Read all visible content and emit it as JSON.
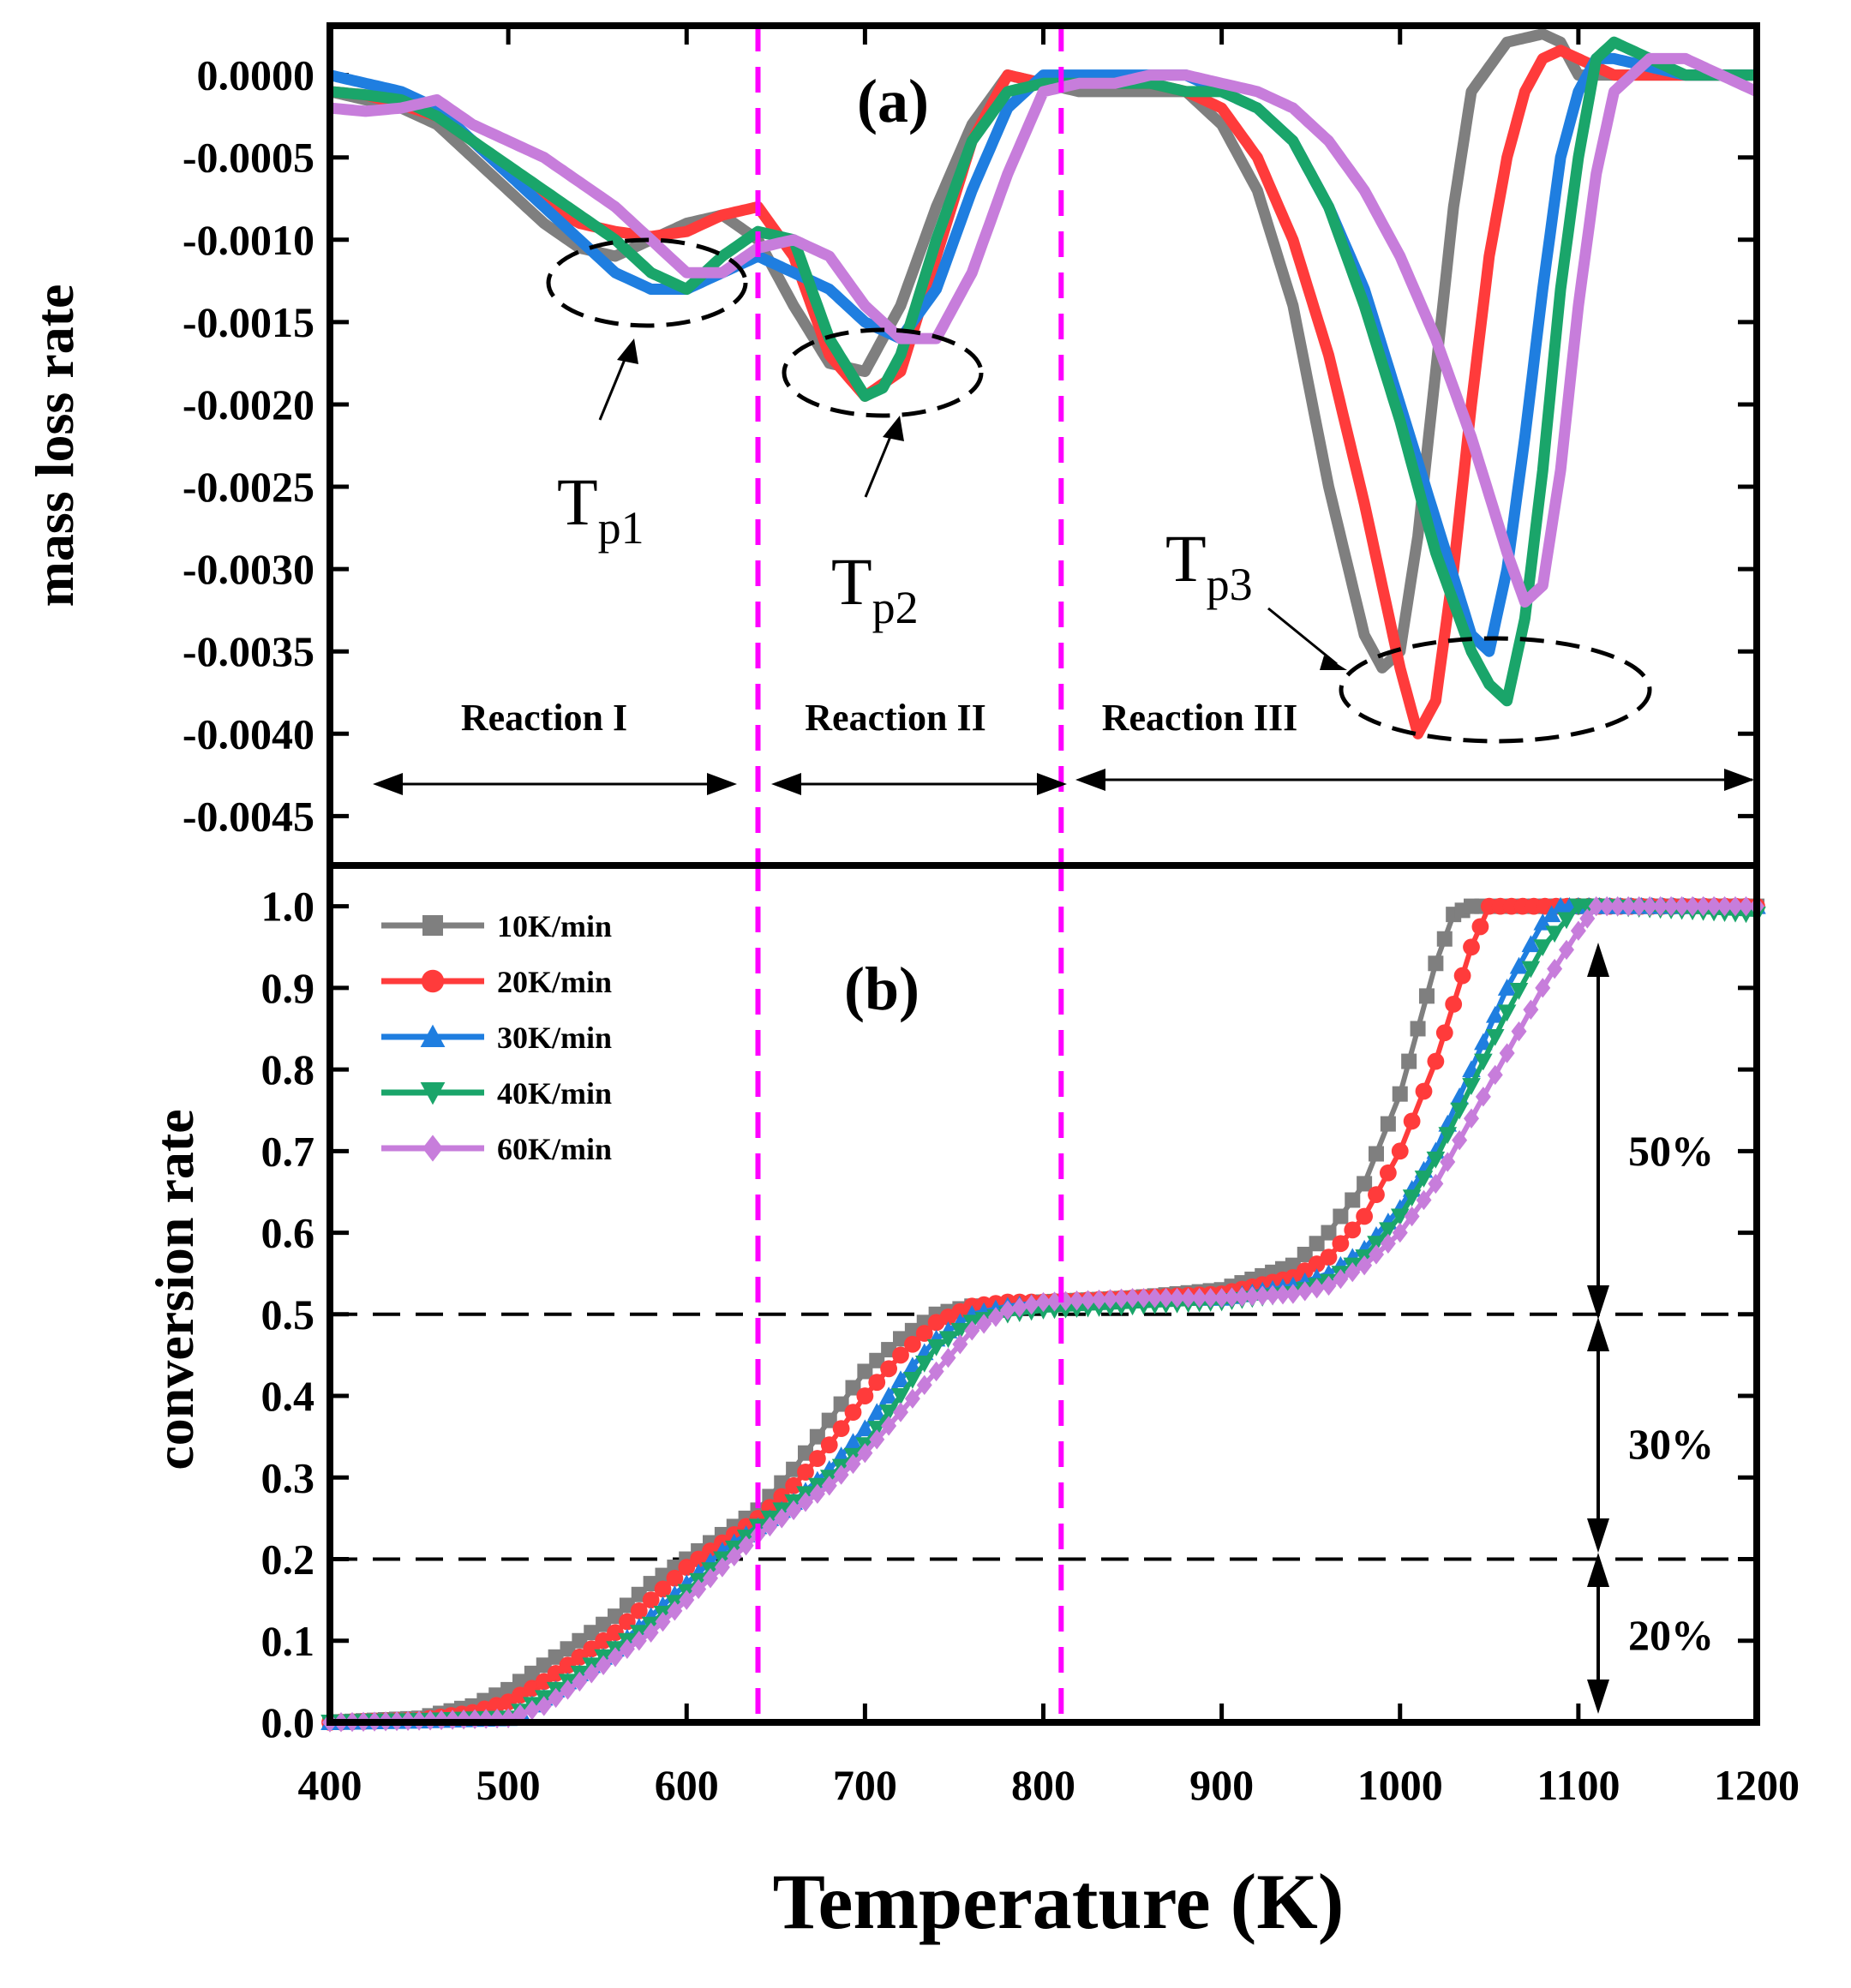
{
  "chart_data": [
    {
      "panel": "(a)",
      "type": "line",
      "ylabel": "mass loss rate",
      "xlim": [
        400,
        1200
      ],
      "ylim": [
        -0.0048,
        0.0003
      ],
      "yticks": [
        "0.0000",
        "-0.0005",
        "-0.0010",
        "-0.0015",
        "-0.0020",
        "-0.0025",
        "-0.0030",
        "-0.0035",
        "-0.0040",
        "-0.0045"
      ],
      "ytick_values": [
        0,
        -0.0005,
        -0.001,
        -0.0015,
        -0.002,
        -0.0025,
        -0.003,
        -0.0035,
        -0.004,
        -0.0045
      ],
      "series": [
        {
          "name": "10K/min",
          "color": "#7f7f7f",
          "x": [
            400,
            420,
            440,
            460,
            480,
            500,
            520,
            540,
            560,
            580,
            600,
            620,
            640,
            660,
            680,
            700,
            720,
            740,
            760,
            780,
            800,
            820,
            840,
            860,
            880,
            900,
            920,
            940,
            960,
            980,
            990,
            1000,
            1010,
            1020,
            1030,
            1040,
            1060,
            1080,
            1090,
            1100,
            1120,
            1140,
            1160,
            1200
          ],
          "y": [
            -0.0001,
            -0.00015,
            -0.0002,
            -0.0003,
            -0.0005,
            -0.0007,
            -0.0009,
            -0.00105,
            -0.0011,
            -0.001,
            -0.0009,
            -0.00085,
            -0.001,
            -0.0014,
            -0.00175,
            -0.0018,
            -0.0014,
            -0.0008,
            -0.0003,
            0,
            -5e-05,
            -0.0001,
            -0.0001,
            -0.0001,
            -0.0001,
            -0.0003,
            -0.0007,
            -0.0014,
            -0.0025,
            -0.0034,
            -0.0036,
            -0.0035,
            -0.0028,
            -0.0018,
            -0.0008,
            -0.0001,
            0.0002,
            0.00025,
            0.0002,
            0,
            0,
            0,
            0,
            0
          ]
        },
        {
          "name": "20K/min",
          "color": "#ff3b3b",
          "x": [
            400,
            420,
            440,
            460,
            480,
            500,
            520,
            540,
            560,
            580,
            600,
            620,
            640,
            660,
            680,
            700,
            720,
            740,
            760,
            780,
            800,
            820,
            840,
            860,
            880,
            900,
            920,
            940,
            960,
            980,
            1000,
            1010,
            1020,
            1030,
            1040,
            1050,
            1060,
            1070,
            1080,
            1090,
            1100,
            1120,
            1160,
            1200
          ],
          "y": [
            -0.0001,
            -0.00012,
            -0.00018,
            -0.00025,
            -0.0004,
            -0.0006,
            -0.00078,
            -0.0009,
            -0.00095,
            -0.00098,
            -0.00095,
            -0.00085,
            -0.0008,
            -0.0011,
            -0.0017,
            -0.00195,
            -0.0018,
            -0.0011,
            -0.0004,
            0,
            -5e-05,
            -5e-05,
            -5e-05,
            -5e-05,
            -0.0001,
            -0.0002,
            -0.0005,
            -0.001,
            -0.0017,
            -0.0026,
            -0.0036,
            -0.004,
            -0.0038,
            -0.003,
            -0.002,
            -0.0011,
            -0.0005,
            -0.0001,
            0.0001,
            0.00015,
            0.0001,
            0,
            0,
            0
          ]
        },
        {
          "name": "30K/min",
          "color": "#1f7ee0",
          "x": [
            400,
            420,
            440,
            460,
            480,
            500,
            520,
            540,
            560,
            580,
            600,
            620,
            640,
            660,
            680,
            700,
            720,
            740,
            760,
            780,
            800,
            820,
            840,
            860,
            880,
            900,
            920,
            940,
            960,
            980,
            1000,
            1020,
            1040,
            1050,
            1060,
            1070,
            1080,
            1090,
            1100,
            1110,
            1120,
            1160,
            1200
          ],
          "y": [
            0,
            -5e-05,
            -0.0001,
            -0.0002,
            -0.0004,
            -0.0006,
            -0.0008,
            -0.001,
            -0.0012,
            -0.0013,
            -0.0013,
            -0.0012,
            -0.0011,
            -0.0012,
            -0.0013,
            -0.0015,
            -0.0016,
            -0.0013,
            -0.0007,
            -0.0002,
            0,
            0,
            0,
            0,
            0,
            -0.0001,
            -0.0002,
            -0.0004,
            -0.0008,
            -0.0013,
            -0.002,
            -0.0027,
            -0.0034,
            -0.0035,
            -0.003,
            -0.0022,
            -0.0013,
            -0.0005,
            -0.0001,
            0.0001,
            0.0001,
            0,
            0
          ]
        },
        {
          "name": "40K/min",
          "color": "#1aa56a",
          "x": [
            400,
            420,
            440,
            460,
            480,
            500,
            520,
            540,
            560,
            580,
            600,
            620,
            640,
            660,
            680,
            700,
            710,
            720,
            740,
            760,
            780,
            800,
            820,
            840,
            860,
            880,
            900,
            920,
            940,
            960,
            980,
            1000,
            1020,
            1040,
            1050,
            1060,
            1070,
            1080,
            1090,
            1100,
            1110,
            1120,
            1160,
            1200
          ],
          "y": [
            -0.0001,
            -0.00012,
            -0.00015,
            -0.00025,
            -0.0004,
            -0.00055,
            -0.0007,
            -0.00085,
            -0.001,
            -0.0012,
            -0.0013,
            -0.0011,
            -0.00095,
            -0.001,
            -0.0016,
            -0.00195,
            -0.0019,
            -0.0017,
            -0.001,
            -0.0004,
            -0.0001,
            -5e-05,
            -5e-05,
            -5e-05,
            -5e-05,
            -0.0001,
            -0.0001,
            -0.0002,
            -0.0004,
            -0.0008,
            -0.0014,
            -0.0021,
            -0.0029,
            -0.0035,
            -0.0037,
            -0.0038,
            -0.0033,
            -0.0024,
            -0.0013,
            -0.0005,
            0.0001,
            0.0002,
            0,
            0
          ]
        },
        {
          "name": "60K/min",
          "color": "#c77ddb",
          "x": [
            400,
            420,
            440,
            460,
            480,
            500,
            520,
            540,
            560,
            580,
            600,
            620,
            640,
            660,
            680,
            700,
            720,
            740,
            760,
            780,
            800,
            820,
            840,
            860,
            880,
            900,
            920,
            940,
            960,
            980,
            1000,
            1020,
            1040,
            1060,
            1070,
            1080,
            1090,
            1100,
            1110,
            1120,
            1140,
            1160,
            1200
          ],
          "y": [
            -0.0002,
            -0.00022,
            -0.0002,
            -0.00015,
            -0.0003,
            -0.0004,
            -0.0005,
            -0.00065,
            -0.0008,
            -0.001,
            -0.0012,
            -0.0012,
            -0.00105,
            -0.001,
            -0.0011,
            -0.0014,
            -0.0016,
            -0.0016,
            -0.0012,
            -0.0006,
            -0.0001,
            -5e-05,
            -5e-05,
            0,
            0,
            -5e-05,
            -0.0001,
            -0.0002,
            -0.0004,
            -0.0007,
            -0.0011,
            -0.0016,
            -0.0022,
            -0.0029,
            -0.0032,
            -0.0031,
            -0.0024,
            -0.0014,
            -0.0006,
            -0.0001,
            0.0001,
            0.0001,
            -0.0001
          ]
        }
      ],
      "vlines": [
        640,
        810
      ],
      "regions": [
        "Reaction I",
        "Reaction II",
        "Reaction III"
      ],
      "peak_labels": [
        {
          "main": "T",
          "sub": "p1"
        },
        {
          "main": "T",
          "sub": "p2"
        },
        {
          "main": "T",
          "sub": "p3"
        }
      ]
    },
    {
      "panel": "(b)",
      "type": "line",
      "xlabel": "Temperature (K)",
      "ylabel": "conversion rate",
      "xlim": [
        400,
        1200
      ],
      "ylim": [
        0,
        1.05
      ],
      "xticks": [
        "400",
        "500",
        "600",
        "700",
        "800",
        "900",
        "1000",
        "1100",
        "1200"
      ],
      "xtick_values": [
        400,
        500,
        600,
        700,
        800,
        900,
        1000,
        1100,
        1200
      ],
      "yticks": [
        "0.0",
        "0.1",
        "0.2",
        "0.3",
        "0.4",
        "0.5",
        "0.6",
        "0.7",
        "0.8",
        "0.9",
        "1.0"
      ],
      "ytick_values": [
        0,
        0.1,
        0.2,
        0.3,
        0.4,
        0.5,
        0.6,
        0.7,
        0.8,
        0.9,
        1.0
      ],
      "series": [
        {
          "name": "10K/min",
          "color": "#7f7f7f",
          "marker": "square",
          "x": [
            400,
            450,
            480,
            500,
            520,
            540,
            560,
            580,
            600,
            620,
            640,
            660,
            680,
            700,
            720,
            740,
            760,
            780,
            800,
            850,
            900,
            940,
            960,
            980,
            1000,
            1010,
            1020,
            1030,
            1040,
            1100,
            1200
          ],
          "y": [
            0,
            0.005,
            0.02,
            0.04,
            0.07,
            0.1,
            0.13,
            0.17,
            0.2,
            0.23,
            0.26,
            0.31,
            0.37,
            0.43,
            0.47,
            0.5,
            0.51,
            0.51,
            0.515,
            0.52,
            0.53,
            0.56,
            0.6,
            0.66,
            0.77,
            0.85,
            0.93,
            0.99,
            1.0,
            1.0,
            1.0
          ]
        },
        {
          "name": "20K/min",
          "color": "#ff3b3b",
          "marker": "circle",
          "x": [
            400,
            450,
            480,
            500,
            520,
            540,
            560,
            580,
            600,
            620,
            640,
            660,
            680,
            700,
            720,
            740,
            760,
            780,
            800,
            850,
            900,
            940,
            960,
            980,
            1000,
            1020,
            1030,
            1040,
            1050,
            1100,
            1200
          ],
          "y": [
            0,
            0.003,
            0.012,
            0.025,
            0.05,
            0.08,
            0.11,
            0.15,
            0.19,
            0.22,
            0.25,
            0.29,
            0.34,
            0.4,
            0.45,
            0.49,
            0.51,
            0.515,
            0.515,
            0.52,
            0.525,
            0.545,
            0.57,
            0.62,
            0.7,
            0.81,
            0.88,
            0.95,
            1.0,
            1.0,
            1.0
          ]
        },
        {
          "name": "30K/min",
          "color": "#1f7ee0",
          "marker": "triangle-up",
          "x": [
            400,
            450,
            500,
            520,
            540,
            560,
            580,
            600,
            620,
            640,
            660,
            680,
            700,
            720,
            740,
            760,
            780,
            800,
            850,
            900,
            940,
            960,
            980,
            1000,
            1020,
            1040,
            1060,
            1080,
            1090,
            1100,
            1200
          ],
          "y": [
            0,
            0.002,
            0.005,
            0.03,
            0.06,
            0.09,
            0.13,
            0.17,
            0.21,
            0.24,
            0.27,
            0.31,
            0.36,
            0.42,
            0.47,
            0.5,
            0.51,
            0.515,
            0.52,
            0.52,
            0.535,
            0.55,
            0.58,
            0.63,
            0.7,
            0.8,
            0.9,
            0.98,
            1.0,
            1.0,
            1.0
          ]
        },
        {
          "name": "40K/min",
          "color": "#1aa56a",
          "marker": "triangle-down",
          "x": [
            400,
            450,
            500,
            520,
            540,
            560,
            580,
            600,
            620,
            640,
            660,
            680,
            700,
            720,
            740,
            760,
            780,
            800,
            850,
            900,
            940,
            960,
            980,
            1000,
            1020,
            1040,
            1060,
            1080,
            1100,
            1110,
            1200
          ],
          "y": [
            0,
            0.002,
            0.005,
            0.03,
            0.06,
            0.09,
            0.12,
            0.16,
            0.2,
            0.24,
            0.27,
            0.3,
            0.34,
            0.4,
            0.46,
            0.49,
            0.5,
            0.505,
            0.51,
            0.515,
            0.525,
            0.54,
            0.57,
            0.62,
            0.69,
            0.78,
            0.87,
            0.95,
            1.0,
            1.0,
            0.99
          ]
        },
        {
          "name": "60K/min",
          "color": "#c77ddb",
          "marker": "diamond",
          "x": [
            400,
            450,
            500,
            520,
            540,
            560,
            580,
            600,
            620,
            640,
            660,
            680,
            700,
            720,
            740,
            760,
            780,
            800,
            850,
            900,
            940,
            960,
            980,
            1000,
            1020,
            1040,
            1060,
            1080,
            1100,
            1110,
            1200
          ],
          "y": [
            0,
            0.002,
            0.005,
            0.02,
            0.05,
            0.08,
            0.11,
            0.15,
            0.19,
            0.23,
            0.26,
            0.29,
            0.33,
            0.38,
            0.43,
            0.48,
            0.505,
            0.515,
            0.52,
            0.52,
            0.525,
            0.535,
            0.56,
            0.6,
            0.66,
            0.74,
            0.82,
            0.9,
            0.97,
            1.0,
            1.0
          ]
        }
      ],
      "vlines": [
        640,
        810
      ],
      "hlines": [
        0.5,
        0.2
      ],
      "segments": [
        "50%",
        "30%",
        "20%"
      ]
    }
  ]
}
